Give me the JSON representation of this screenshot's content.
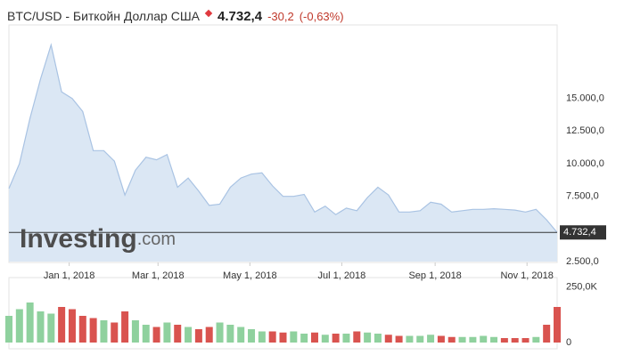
{
  "header": {
    "title": "BTC/USD - Биткойн Доллар США",
    "price": "4.732,4",
    "change": "-30,2",
    "change_pct": "(-0,63%)"
  },
  "chart_data": [
    {
      "type": "area",
      "color": "#dbe7f4",
      "line_color": "#a9c3e3",
      "watermark": "Investing",
      "watermark_suffix": ".com",
      "x": [
        "2017-11-22",
        "2017-11-29",
        "2017-12-06",
        "2017-12-13",
        "2017-12-20",
        "2017-12-27",
        "2018-01-03",
        "2018-01-10",
        "2018-01-17",
        "2018-01-24",
        "2018-01-31",
        "2018-02-07",
        "2018-02-14",
        "2018-02-21",
        "2018-02-28",
        "2018-03-07",
        "2018-03-14",
        "2018-03-21",
        "2018-03-28",
        "2018-04-04",
        "2018-04-11",
        "2018-04-18",
        "2018-04-25",
        "2018-05-02",
        "2018-05-09",
        "2018-05-16",
        "2018-05-23",
        "2018-05-30",
        "2018-06-06",
        "2018-06-13",
        "2018-06-20",
        "2018-06-27",
        "2018-07-04",
        "2018-07-11",
        "2018-07-18",
        "2018-07-25",
        "2018-08-01",
        "2018-08-08",
        "2018-08-15",
        "2018-08-22",
        "2018-08-29",
        "2018-09-05",
        "2018-09-12",
        "2018-09-19",
        "2018-09-26",
        "2018-10-03",
        "2018-10-10",
        "2018-10-17",
        "2018-10-24",
        "2018-10-31",
        "2018-11-07",
        "2018-11-14",
        "2018-11-21"
      ],
      "values": [
        8100,
        10000,
        13500,
        16500,
        19100,
        15500,
        15000,
        14000,
        11000,
        11000,
        10200,
        7600,
        9500,
        10500,
        10300,
        10700,
        8200,
        8900,
        7900,
        6800,
        6900,
        8200,
        8900,
        9200,
        9300,
        8300,
        7500,
        7500,
        7650,
        6300,
        6750,
        6100,
        6600,
        6400,
        7400,
        8200,
        7600,
        6300,
        6300,
        6400,
        7050,
        6900,
        6300,
        6400,
        6500,
        6500,
        6550,
        6500,
        6450,
        6300,
        6500,
        5700,
        4732.4
      ],
      "last_value_label": "4.732,4",
      "xlim": [
        "2017-11-22",
        "2018-11-21"
      ],
      "xticks": [
        {
          "value": "2018-01-01",
          "label": "Jan 1, 2018"
        },
        {
          "value": "2018-03-01",
          "label": "Mar 1, 2018"
        },
        {
          "value": "2018-05-01",
          "label": "May 1, 2018"
        },
        {
          "value": "2018-07-01",
          "label": "Jul 1, 2018"
        },
        {
          "value": "2018-09-01",
          "label": "Sep 1, 2018"
        },
        {
          "value": "2018-11-01",
          "label": "Nov 1, 2018"
        }
      ],
      "ylim": [
        2500,
        20500
      ],
      "yticks": [
        {
          "value": 2500,
          "label": "2.500,0"
        },
        {
          "value": 7500,
          "label": "7.500,0"
        },
        {
          "value": 10000,
          "label": "10.000,0"
        },
        {
          "value": 12500,
          "label": "12.500,0"
        },
        {
          "value": 15000,
          "label": "15.000,0"
        }
      ]
    },
    {
      "type": "bar",
      "up_color": "#8fd19e",
      "down_color": "#d9534f",
      "values": [
        120000,
        150000,
        180000,
        140000,
        130000,
        160000,
        150000,
        120000,
        110000,
        100000,
        90000,
        140000,
        100000,
        80000,
        70000,
        90000,
        80000,
        70000,
        60000,
        70000,
        90000,
        80000,
        70000,
        60000,
        50000,
        50000,
        45000,
        50000,
        40000,
        45000,
        35000,
        40000,
        40000,
        50000,
        45000,
        40000,
        35000,
        30000,
        30000,
        30000,
        35000,
        30000,
        25000,
        25000,
        25000,
        30000,
        25000,
        20000,
        20000,
        20000,
        25000,
        80000,
        160000
      ],
      "ylim": [
        0,
        300000
      ],
      "yticks": [
        0,
        {
          "value": 250000,
          "label": "250,0K"
        }
      ]
    }
  ]
}
